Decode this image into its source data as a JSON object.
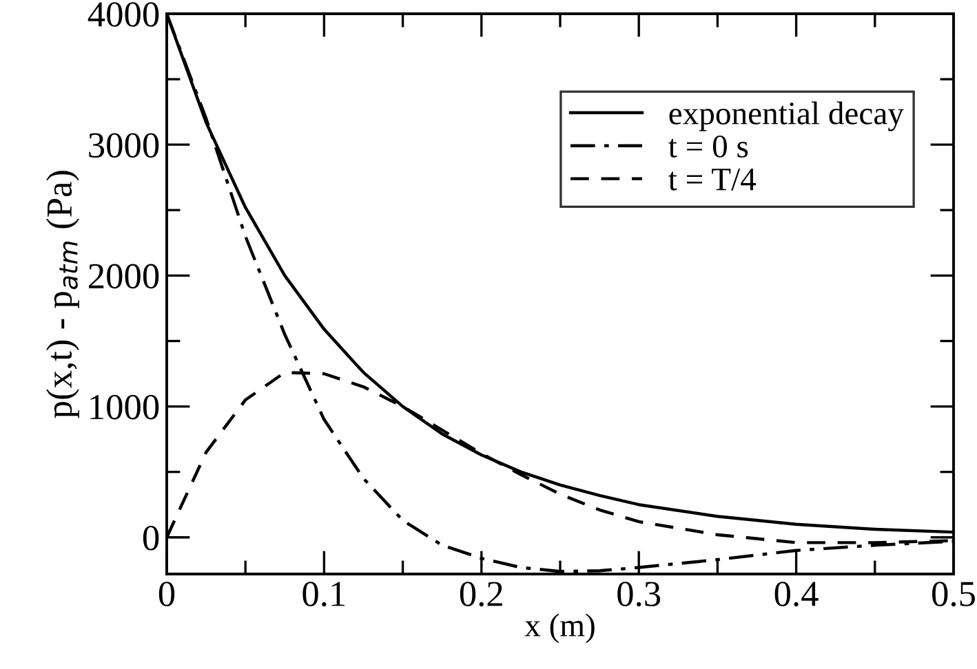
{
  "chart_data": {
    "type": "line",
    "xlabel": "x (m)",
    "ylabel": "p(x,t) - p$_{atm}$ (Pa)",
    "x": [
      0,
      0.025,
      0.05,
      0.075,
      0.1,
      0.125,
      0.15,
      0.175,
      0.2,
      0.225,
      0.25,
      0.275,
      0.3,
      0.35,
      0.4,
      0.45,
      0.5
    ],
    "series": [
      {
        "name": "exponential decay",
        "color": "#000000",
        "line_style": "solid",
        "values": [
          4000,
          3170,
          2520,
          2000,
          1590,
          1260,
          1000,
          790,
          630,
          500,
          400,
          320,
          250,
          160,
          100,
          62,
          40
        ]
      },
      {
        "name": "t = 0 s",
        "color": "#000000",
        "line_style": "dashdot",
        "values": [
          4000,
          3200,
          2300,
          1550,
          900,
          450,
          130,
          -60,
          -160,
          -230,
          -260,
          -255,
          -230,
          -170,
          -100,
          -60,
          -30
        ]
      },
      {
        "name": "t = T/4",
        "color": "#000000",
        "line_style": "dashed",
        "values": [
          0,
          650,
          1050,
          1260,
          1250,
          1150,
          1000,
          820,
          640,
          480,
          330,
          210,
          120,
          20,
          -40,
          -40,
          -25
        ]
      }
    ],
    "xlim": [
      0,
      0.5
    ],
    "ylim": [
      -280,
      4000
    ],
    "xticks": [
      0,
      0.1,
      0.2,
      0.3,
      0.4,
      0.5
    ],
    "yticks": [
      0,
      1000,
      2000,
      3000,
      4000
    ],
    "grid": false,
    "legend": "top right",
    "marker": "none"
  }
}
